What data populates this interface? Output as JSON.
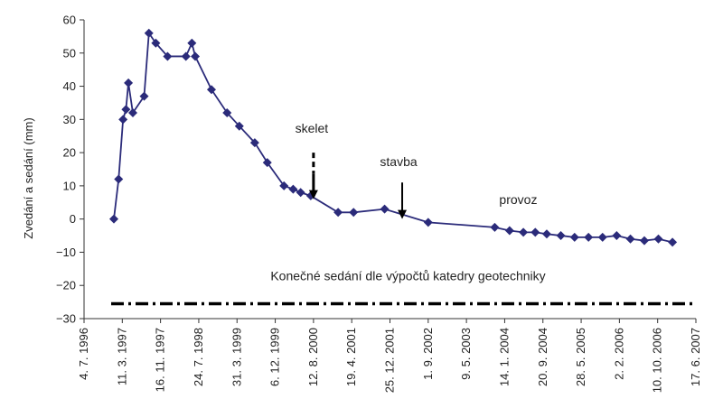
{
  "chart_data": {
    "type": "line",
    "ylabel": "Zvedání a sedání (mm)",
    "xlabel": "",
    "ylim": [
      -30,
      60
    ],
    "yticks": [
      60,
      50,
      40,
      30,
      20,
      10,
      0,
      -10,
      -20,
      -30
    ],
    "ytick_labels": [
      "60",
      "50",
      "40",
      "30",
      "20",
      "10",
      "0",
      "−10",
      "−20",
      "−30"
    ],
    "xticks": [
      "1996-07-04",
      "1997-03-11",
      "1997-11-16",
      "1998-07-24",
      "1999-03-31",
      "1999-12-06",
      "2000-08-12",
      "2001-04-19",
      "2001-12-25",
      "2002-09-01",
      "2003-05-09",
      "2004-01-14",
      "2004-09-20",
      "2005-05-28",
      "2006-02-02",
      "2006-10-10",
      "2007-06-17"
    ],
    "xtick_labels": [
      "4. 7. 1996",
      "11. 3. 1997",
      "16. 11. 1997",
      "24. 7. 1998",
      "31. 3. 1999",
      "6. 12. 1999",
      "12. 8. 2000",
      "19. 4. 2001",
      "25. 12. 2001",
      "1. 9. 2002",
      "9. 5. 2003",
      "14. 1. 2004",
      "20. 9. 2004",
      "28. 5. 2005",
      "2. 2. 2006",
      "10. 10. 2006",
      "17. 6. 2007"
    ],
    "series": [
      {
        "color": "#2b2b7a",
        "marker": "diamond",
        "x": [
          "1997-01-15",
          "1997-02-15",
          "1997-03-16",
          "1997-04-04",
          "1997-04-20",
          "1997-05-19",
          "1997-08-01",
          "1997-09-01",
          "1997-10-16",
          "1998-01-01",
          "1998-05-01",
          "1998-06-09",
          "1998-07-01",
          "1998-10-15",
          "1999-01-25",
          "1999-04-15",
          "1999-07-25",
          "1999-10-15",
          "2000-02-01",
          "2000-04-01",
          "2000-05-20",
          "2000-07-25",
          "2001-01-20",
          "2001-05-01",
          "2001-11-20",
          "2002-09-01",
          "2003-11-10",
          "2004-02-15",
          "2004-05-15",
          "2004-08-01",
          "2004-10-15",
          "2005-01-15",
          "2005-04-15",
          "2005-07-15",
          "2005-10-15",
          "2006-01-15",
          "2006-04-15",
          "2006-07-15",
          "2006-10-15",
          "2007-01-15"
        ],
        "y": [
          0,
          12,
          30,
          33,
          41,
          32,
          37,
          56,
          53,
          49,
          49,
          53,
          49,
          39,
          32,
          28,
          23,
          17,
          10,
          9,
          8,
          7,
          2,
          2,
          3,
          -1,
          -2.5,
          -3.5,
          -4,
          -4,
          -4.5,
          -5,
          -5.5,
          -5.5,
          -5.5,
          -5,
          -6,
          -6.5,
          -6,
          -7
        ]
      }
    ],
    "reference_line": {
      "y": -25.5,
      "style": "dash-dot",
      "color": "#000000"
    },
    "annotations": {
      "skelet": "skelet",
      "stavba": "stavba",
      "provoz": "provoz",
      "reference_label": "Konečné sedání dle výpočtů katedry geotechniky"
    },
    "arrows": [
      {
        "name": "skelet",
        "x": "2000-08-12",
        "y_from": 20,
        "y_to": 6,
        "dashed_top": true
      },
      {
        "name": "stavba",
        "x": "2002-03-15",
        "y_from": 11,
        "y_to": 0,
        "dashed_top": false
      }
    ],
    "grid": false,
    "legend": "none"
  }
}
